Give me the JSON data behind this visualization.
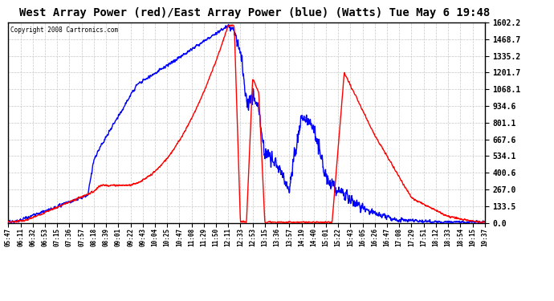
{
  "title": "West Array Power (red)/East Array Power (blue) (Watts) Tue May 6 19:48",
  "copyright": "Copyright 2008 Cartronics.com",
  "background_color": "#ffffff",
  "plot_bg_color": "#ffffff",
  "grid_color": "#c8c8c8",
  "title_fontsize": 10,
  "ymin": 0.0,
  "ymax": 1602.2,
  "yticks": [
    0.0,
    133.5,
    267.0,
    400.6,
    534.1,
    667.6,
    801.1,
    934.6,
    1068.1,
    1201.7,
    1335.2,
    1468.7,
    1602.2
  ],
  "xtick_labels": [
    "05:47",
    "06:11",
    "06:32",
    "06:53",
    "07:15",
    "07:36",
    "07:57",
    "08:18",
    "08:39",
    "09:01",
    "09:22",
    "09:43",
    "10:04",
    "10:25",
    "10:47",
    "11:08",
    "11:29",
    "11:50",
    "12:11",
    "12:33",
    "12:53",
    "13:15",
    "13:36",
    "13:57",
    "14:19",
    "14:40",
    "15:01",
    "15:22",
    "15:43",
    "16:05",
    "16:26",
    "16:47",
    "17:08",
    "17:29",
    "17:51",
    "18:12",
    "18:33",
    "18:54",
    "19:15",
    "19:37"
  ],
  "red_color": "#ff0000",
  "blue_color": "#0000ff",
  "line_width": 1.0
}
